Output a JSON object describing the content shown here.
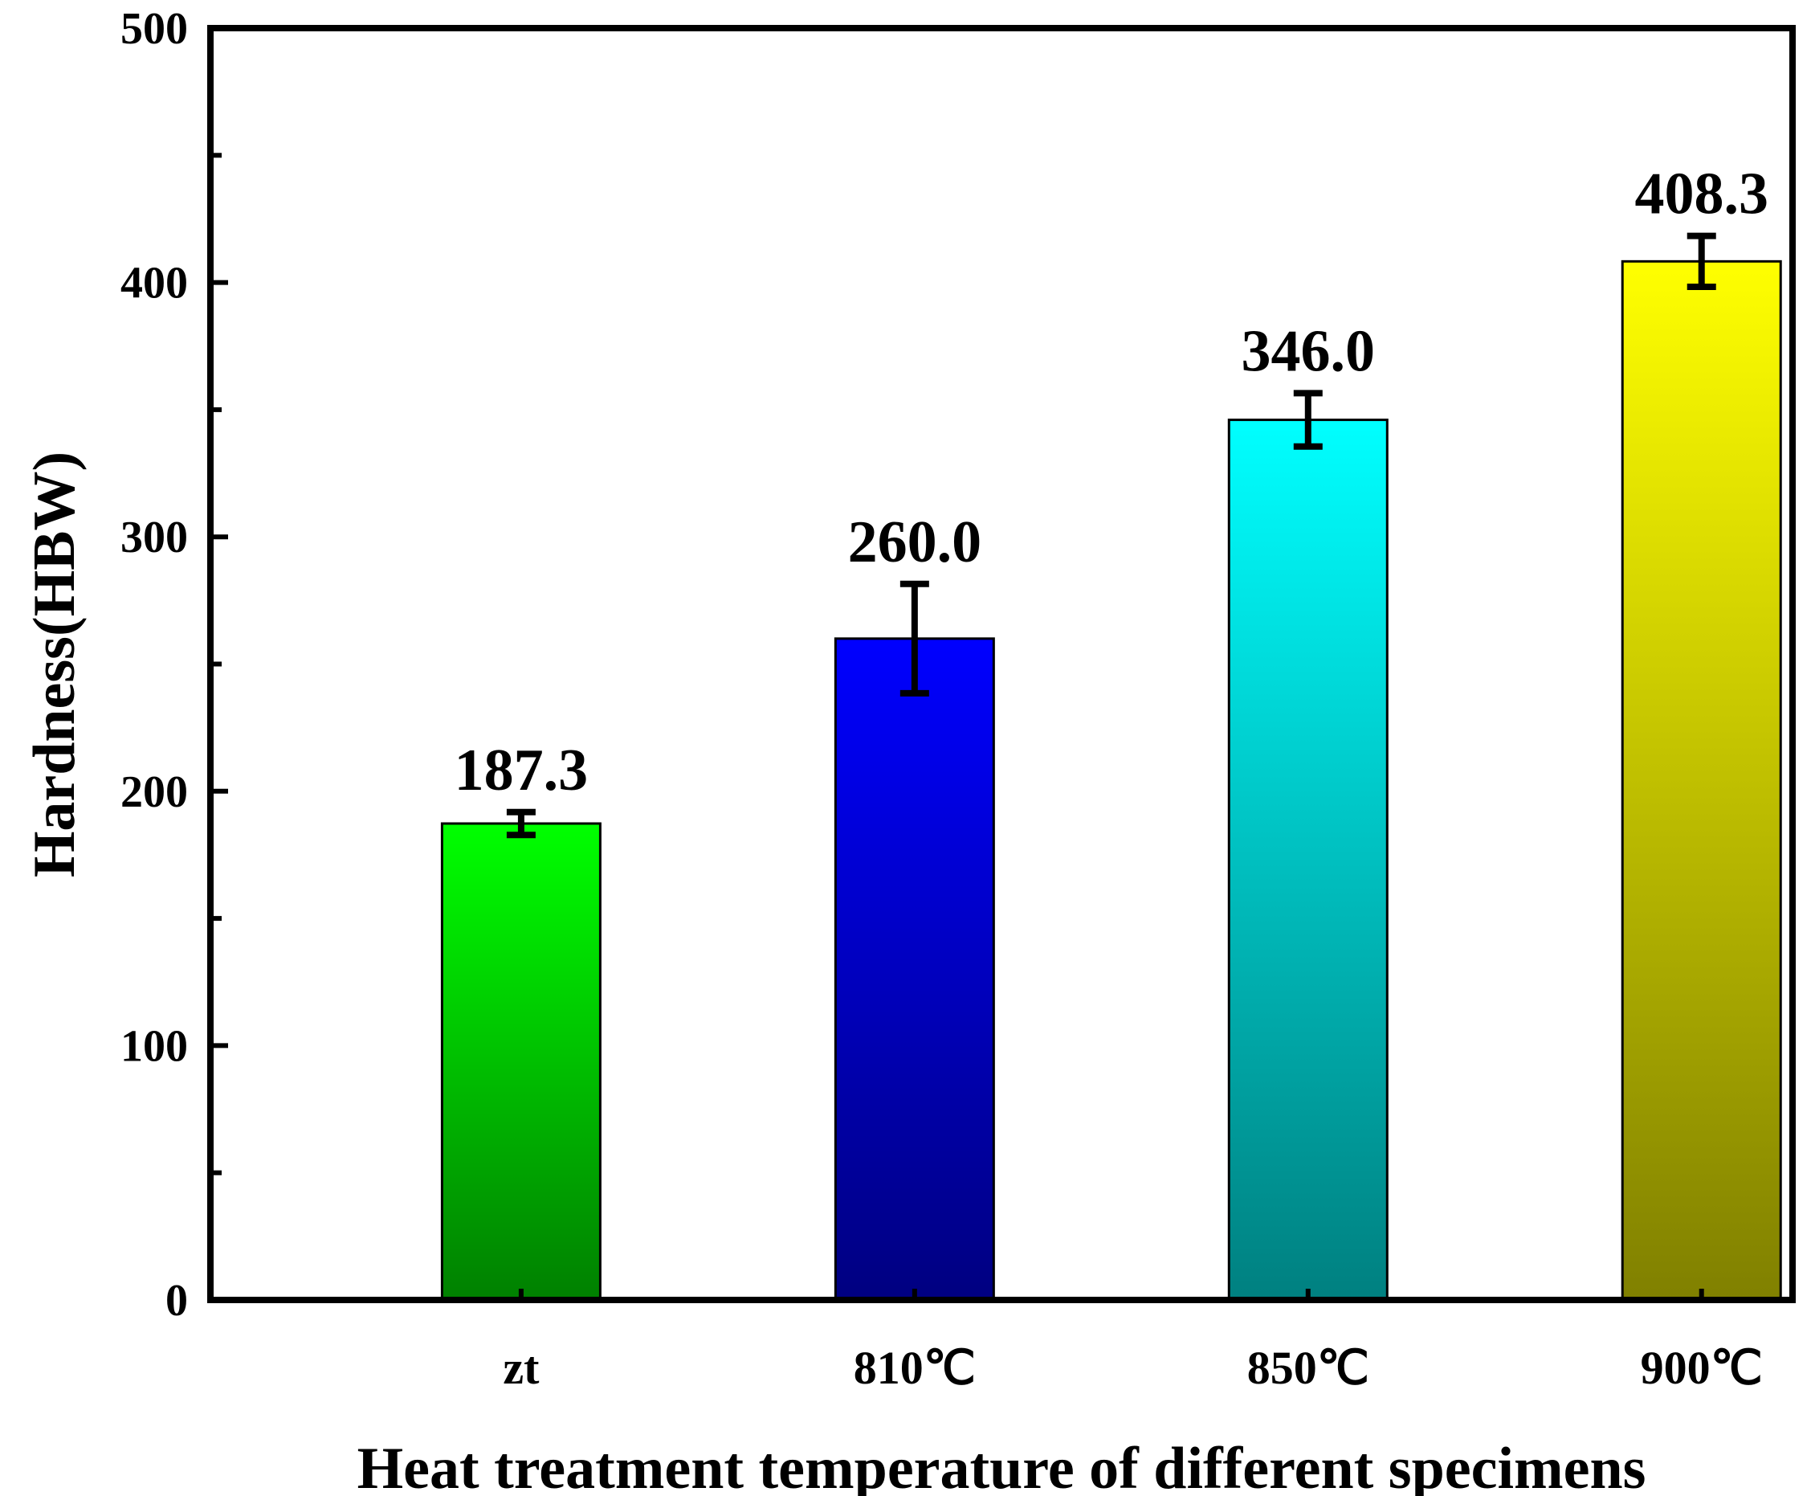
{
  "chart_data": {
    "type": "bar",
    "title": "",
    "categories": [
      "zt",
      "810℃",
      "850℃",
      "900℃"
    ],
    "values": [
      187.3,
      260.0,
      346.0,
      408.3
    ],
    "value_labels": [
      "187.3",
      "260.0",
      "346.0",
      "408.3"
    ],
    "error": [
      4.5,
      21.5,
      10.5,
      10.0
    ],
    "colors": [
      {
        "top": "#00ff00",
        "bottom": "#008000"
      },
      {
        "top": "#0000ff",
        "bottom": "#000080"
      },
      {
        "top": "#00ffff",
        "bottom": "#008080"
      },
      {
        "top": "#ffff00",
        "bottom": "#808000"
      }
    ],
    "xlabel": "Heat treatment temperature of different specimens",
    "ylabel": "Hardness(HBW)",
    "ylim": [
      0,
      500
    ],
    "yticks": [
      0,
      100,
      200,
      300,
      400,
      500
    ],
    "yminor_step": 50,
    "grid": false,
    "legend": "none"
  }
}
